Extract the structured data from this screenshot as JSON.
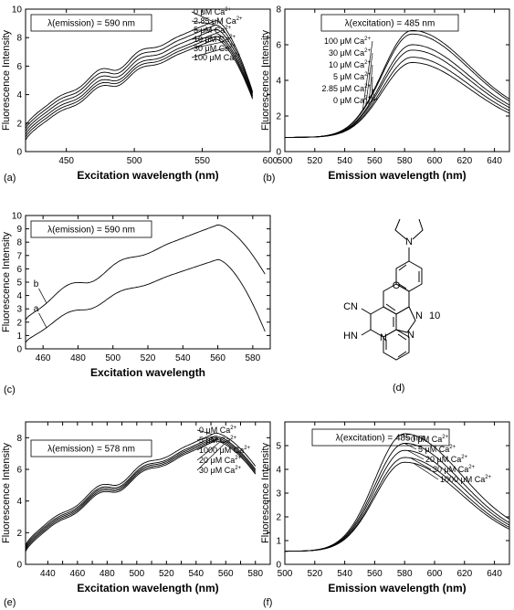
{
  "chart_data": [
    {
      "panel_label": "(a)",
      "type": "line",
      "xlabel": "Excitation wavelength (nm)",
      "ylabel": "Fluorescence Intensity",
      "xlim": [
        420,
        600
      ],
      "ylim": [
        0,
        10
      ],
      "xticks": [
        450,
        500,
        550,
        600
      ],
      "yticks": [
        0,
        2,
        4,
        6,
        8,
        10
      ],
      "legend_box": "λ(emission) = 590 nm",
      "shape": "excitation",
      "x_range": [
        420,
        587
      ],
      "peak": 560,
      "series": [
        {
          "label": "0 μM Ca",
          "sup": "2+",
          "start": 1.8,
          "peak_value": 9.2,
          "end": 4.2
        },
        {
          "label": "2.85 μM Ca",
          "sup": "2+",
          "start": 1.6,
          "peak_value": 8.9,
          "end": 4.1
        },
        {
          "label": "5 μM Ca",
          "sup": "2+",
          "start": 1.4,
          "peak_value": 8.6,
          "end": 4.0
        },
        {
          "label": "10 μM Ca",
          "sup": "2+",
          "start": 1.2,
          "peak_value": 8.3,
          "end": 3.9
        },
        {
          "label": "30 μM Ca",
          "sup": "2+",
          "start": 1.0,
          "peak_value": 8.1,
          "end": 3.8
        },
        {
          "label": "100 μM Ca",
          "sup": "2+",
          "start": 0.8,
          "peak_value": 7.9,
          "end": 3.7
        }
      ]
    },
    {
      "panel_label": "(b)",
      "type": "line",
      "xlabel": "Emission wavelength (nm)",
      "ylabel": "Fluorescence Intensity",
      "xlim": [
        500,
        650
      ],
      "ylim": [
        0,
        8
      ],
      "xticks": [
        500,
        520,
        540,
        560,
        580,
        600,
        620,
        640
      ],
      "yticks": [
        0,
        2,
        4,
        6,
        8
      ],
      "legend_box": "λ(excitation) = 485 nm",
      "shape": "emission",
      "x_range": [
        500,
        650
      ],
      "peak": 585,
      "series": [
        {
          "label": "100 μM Ca",
          "sup": "2+",
          "start": 0.8,
          "peak_value": 6.8,
          "end": 1.8
        },
        {
          "label": "30 μM Ca",
          "sup": "2+",
          "start": 0.8,
          "peak_value": 6.6,
          "end": 1.7
        },
        {
          "label": "10 μM Ca",
          "sup": "2+",
          "start": 0.8,
          "peak_value": 6.0,
          "end": 1.6
        },
        {
          "label": "5 μM Ca",
          "sup": "2+",
          "start": 0.8,
          "peak_value": 5.7,
          "end": 1.5
        },
        {
          "label": "2.85 μM Ca",
          "sup": "2+",
          "start": 0.8,
          "peak_value": 5.3,
          "end": 1.4
        },
        {
          "label": "0 μM Ca",
          "sup": "2+",
          "start": 0.8,
          "peak_value": 5.0,
          "end": 1.3
        }
      ]
    },
    {
      "panel_label": "(c)",
      "type": "line",
      "xlabel": "Excitation wavelength",
      "ylabel": "Fluorescence Intensity",
      "xlim": [
        450,
        590
      ],
      "ylim": [
        0,
        10
      ],
      "xticks": [
        460,
        480,
        500,
        520,
        540,
        560,
        580
      ],
      "yticks": [
        0,
        1,
        2,
        3,
        4,
        5,
        6,
        7,
        8,
        9,
        10
      ],
      "legend_box": "λ(emission) = 590 nm",
      "shape": "excitation",
      "x_range": [
        450,
        587
      ],
      "peak": 560,
      "series": [
        {
          "label": "b",
          "sup": "",
          "start": 2.2,
          "peak_value": 9.3,
          "end": 5.6
        },
        {
          "label": "a",
          "sup": "",
          "start": 0.5,
          "peak_value": 6.7,
          "end": 1.3
        }
      ]
    },
    {
      "panel_label": "(e)",
      "type": "line",
      "xlabel": "Excitation wavelength (nm)",
      "ylabel": "Fluorescence Intensity",
      "xlim": [
        425,
        590
      ],
      "ylim": [
        0,
        9
      ],
      "xticks": [
        440,
        450,
        460,
        470,
        480,
        490,
        500,
        510,
        520,
        530,
        540,
        550,
        560,
        570,
        580
      ],
      "xticklabels": [
        "440",
        "",
        "460",
        "",
        "480",
        "",
        "500",
        "",
        "520",
        "",
        "540",
        "",
        "560",
        "",
        "580"
      ],
      "yticks": [
        0,
        2,
        4,
        6,
        8
      ],
      "legend_box": "λ(emission) = 578 nm",
      "shape": "excitation",
      "x_range": [
        425,
        580
      ],
      "peak": 553,
      "series": [
        {
          "label": "0 μM Ca",
          "sup": "2+",
          "start": 1.2,
          "peak_value": 8.3,
          "end": 6.2
        },
        {
          "label": "5 μM Ca",
          "sup": "2+",
          "start": 1.1,
          "peak_value": 8.1,
          "end": 6.0
        },
        {
          "label": "1000 μM Ca",
          "sup": "2+",
          "start": 1.0,
          "peak_value": 8.0,
          "end": 5.9
        },
        {
          "label": "20 μM Ca",
          "sup": "2+",
          "start": 0.9,
          "peak_value": 7.9,
          "end": 5.8
        },
        {
          "label": "30 μM Ca",
          "sup": "2+",
          "start": 0.8,
          "peak_value": 7.8,
          "end": 5.7
        }
      ]
    },
    {
      "panel_label": "(f)",
      "type": "line",
      "xlabel": "Emission wavelength (nm)",
      "ylabel": "Fluorescence Intensity",
      "xlim": [
        500,
        650
      ],
      "ylim": [
        0,
        6
      ],
      "xticks": [
        500,
        520,
        540,
        560,
        580,
        600,
        620,
        640
      ],
      "yticks": [
        0,
        1,
        2,
        3,
        4,
        5
      ],
      "legend_box": "λ(excitation) = 485 nm",
      "shape": "emission",
      "x_range": [
        500,
        650
      ],
      "peak": 580,
      "series": [
        {
          "label": "0 μM Ca",
          "sup": "2+",
          "start": 0.55,
          "peak_value": 5.5,
          "end": 1.1
        },
        {
          "label": "5 μM Ca",
          "sup": "2+",
          "start": 0.55,
          "peak_value": 5.1,
          "end": 1.0
        },
        {
          "label": "20 μM Ca",
          "sup": "2+",
          "start": 0.55,
          "peak_value": 4.8,
          "end": 0.95
        },
        {
          "label": "30 μM Ca",
          "sup": "2+",
          "start": 0.55,
          "peak_value": 4.5,
          "end": 0.9
        },
        {
          "label": "1000 μM Ca",
          "sup": "2+",
          "start": 0.55,
          "peak_value": 4.3,
          "end": 0.85
        }
      ]
    }
  ],
  "structure": {
    "panel_label": "(d)",
    "compound_number": "10",
    "labels": [
      "N",
      "O",
      "CN",
      "N",
      "HN",
      "N",
      "N"
    ]
  }
}
